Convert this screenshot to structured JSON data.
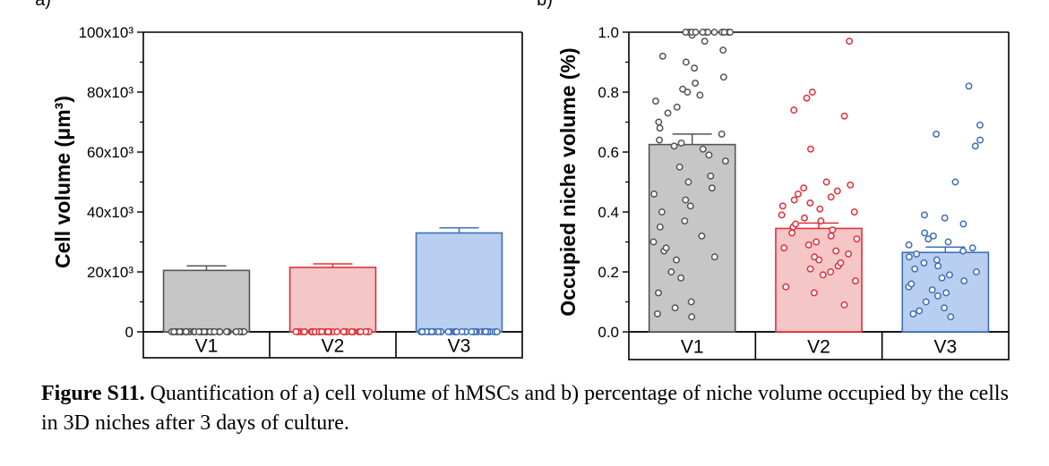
{
  "figure": {
    "caption_label": "Figure S11.",
    "caption_text": " Quantification of a) cell volume of hMSCs and b) percentage of niche volume occupied by the cells in 3D niches after 3 days of culture."
  },
  "chart_data": [
    {
      "panel": "a)",
      "type": "bar",
      "categories": [
        "V1",
        "V2",
        "V3"
      ],
      "values": [
        20500,
        21500,
        33000
      ],
      "errors": [
        1500,
        1200,
        1700
      ],
      "colors": {
        "V1": {
          "fill": "#c6c6c6",
          "edge": "#555555"
        },
        "V2": {
          "fill": "#f5c6c6",
          "edge": "#e0303a"
        },
        "V3": {
          "fill": "#b9cff0",
          "edge": "#3f6fb8"
        }
      },
      "ylabel": "Cell volume (μm³)",
      "ylim": [
        0,
        100000
      ],
      "yticks": [
        0,
        20000,
        40000,
        60000,
        80000,
        100000
      ],
      "ytick_labels": [
        "0",
        "20x10³",
        "40x10³",
        "60x10³",
        "80x10³",
        "100x10³"
      ],
      "points": [
        [
          1,
          1.5,
          2,
          2.5,
          3,
          4,
          6,
          8,
          9,
          10,
          11,
          12,
          13,
          14,
          15,
          16,
          17,
          18,
          19,
          20,
          21,
          22,
          23,
          25,
          26,
          27,
          28,
          29,
          30,
          31,
          32,
          33,
          34,
          35,
          35,
          35,
          35,
          35,
          35,
          35,
          35,
          35,
          35,
          35,
          35,
          35,
          35,
          35,
          35,
          35,
          35
        ],
        [
          8,
          10,
          11,
          12,
          13,
          14,
          15,
          16,
          17,
          18,
          19,
          20,
          21,
          22,
          23,
          24,
          25,
          26,
          27,
          28,
          29,
          30,
          31,
          32,
          33,
          35,
          37,
          40,
          42,
          44,
          46,
          49,
          59
        ],
        [
          6,
          8,
          10,
          12,
          13,
          15,
          17,
          19,
          20,
          22,
          24,
          26,
          27,
          28,
          29,
          30,
          31,
          32,
          33,
          34,
          35,
          36,
          37,
          38,
          40,
          42,
          43,
          45,
          46,
          48,
          49,
          53,
          63,
          78,
          81,
          86
        ]
      ]
    },
    {
      "panel": "b)",
      "type": "bar",
      "categories": [
        "V1",
        "V2",
        "V3"
      ],
      "values": [
        0.625,
        0.345,
        0.265
      ],
      "errors": [
        0.035,
        0.018,
        0.018
      ],
      "colors": {
        "V1": {
          "fill": "#c6c6c6",
          "edge": "#555555"
        },
        "V2": {
          "fill": "#f5c6c6",
          "edge": "#e0303a"
        },
        "V3": {
          "fill": "#b9cff0",
          "edge": "#3f6fb8"
        }
      },
      "ylabel": "Occupied niche volume (%)",
      "ylim": [
        0,
        1.0
      ],
      "yticks": [
        0.0,
        0.2,
        0.4,
        0.6,
        0.8,
        1.0
      ],
      "ytick_labels": [
        "0.0",
        "0.2",
        "0.4",
        "0.6",
        "0.8",
        "1.0"
      ],
      "points": [
        [
          0.05,
          0.06,
          0.08,
          0.1,
          0.13,
          0.18,
          0.2,
          0.24,
          0.25,
          0.27,
          0.28,
          0.3,
          0.32,
          0.35,
          0.37,
          0.4,
          0.42,
          0.44,
          0.46,
          0.48,
          0.5,
          0.52,
          0.55,
          0.57,
          0.59,
          0.61,
          0.62,
          0.63,
          0.64,
          0.66,
          0.68,
          0.7,
          0.73,
          0.75,
          0.77,
          0.79,
          0.8,
          0.81,
          0.83,
          0.85,
          0.88,
          0.9,
          0.92,
          0.94,
          0.97,
          0.99,
          1.0,
          1.0,
          1.0,
          1.0,
          1.0,
          1.0,
          1.0,
          1.0,
          1.0,
          1.0,
          1.0,
          1.0,
          1.0
        ],
        [
          0.09,
          0.13,
          0.15,
          0.17,
          0.19,
          0.2,
          0.21,
          0.22,
          0.23,
          0.24,
          0.25,
          0.26,
          0.27,
          0.28,
          0.29,
          0.3,
          0.31,
          0.32,
          0.33,
          0.34,
          0.35,
          0.36,
          0.37,
          0.38,
          0.39,
          0.4,
          0.41,
          0.42,
          0.43,
          0.44,
          0.45,
          0.46,
          0.47,
          0.48,
          0.49,
          0.5,
          0.61,
          0.72,
          0.74,
          0.78,
          0.8,
          0.97
        ],
        [
          0.05,
          0.06,
          0.07,
          0.08,
          0.1,
          0.12,
          0.13,
          0.14,
          0.15,
          0.16,
          0.17,
          0.18,
          0.19,
          0.2,
          0.21,
          0.22,
          0.23,
          0.24,
          0.25,
          0.26,
          0.27,
          0.28,
          0.29,
          0.3,
          0.31,
          0.32,
          0.33,
          0.36,
          0.38,
          0.39,
          0.5,
          0.62,
          0.64,
          0.66,
          0.69,
          0.82
        ]
      ]
    }
  ]
}
